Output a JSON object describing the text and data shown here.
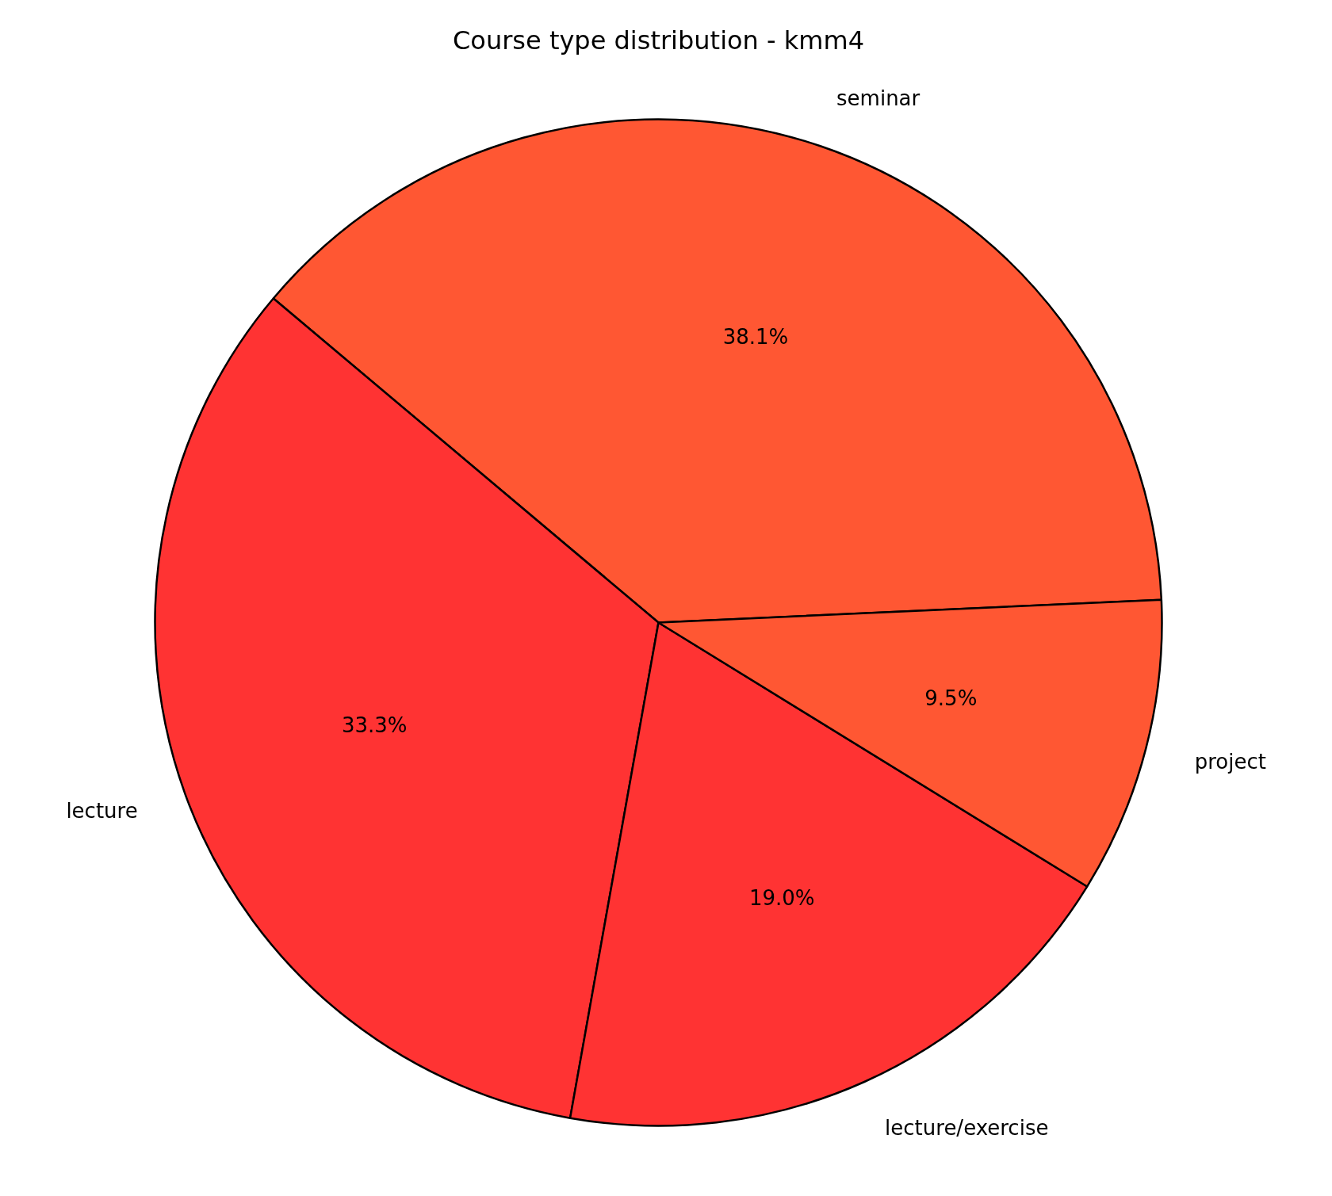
{
  "chart_data": {
    "type": "pie",
    "title": "Course type distribution - kmm4",
    "categories": [
      "seminar",
      "lecture",
      "lecture/exercise",
      "project"
    ],
    "values": [
      38.1,
      33.3,
      19.0,
      9.5
    ],
    "colors": [
      "#ff5733",
      "#ff3333",
      "#ff3333",
      "#ff5733"
    ],
    "value_labels": [
      "38.1%",
      "33.3%",
      "19.0%",
      "9.5%"
    ]
  }
}
